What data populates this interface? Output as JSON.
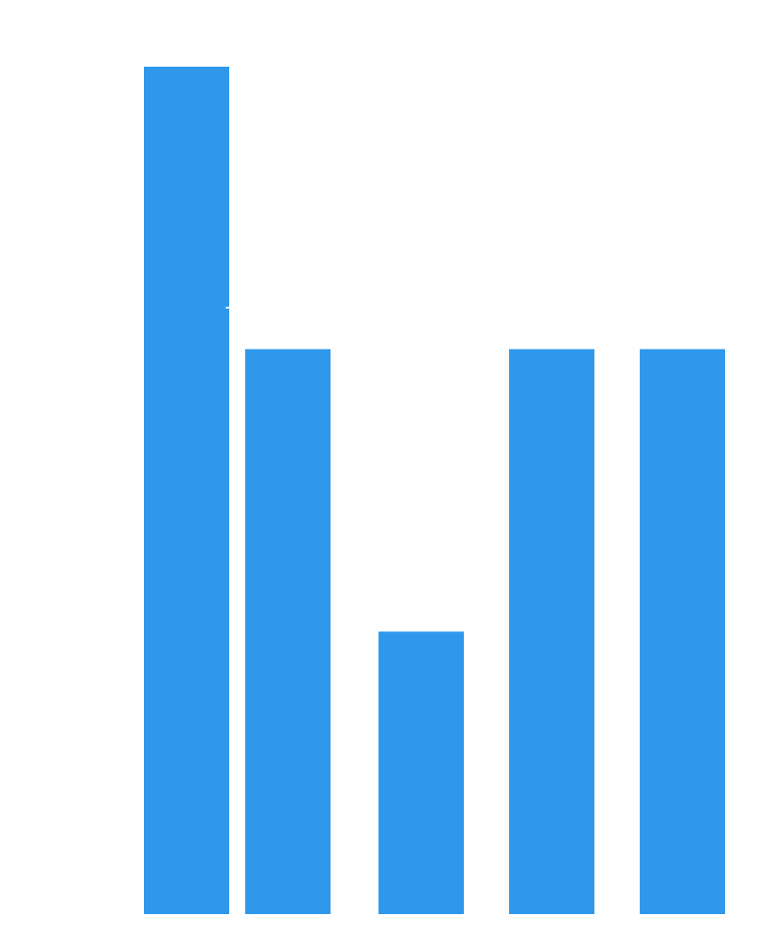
{
  "chart_data": {
    "type": "bar",
    "categories": [
      "",
      "",
      "",
      "",
      ""
    ],
    "values": [
      3,
      2,
      1,
      2,
      2
    ],
    "ylim": [
      0,
      3
    ],
    "grid": false,
    "legend": "none",
    "colors": {
      "bar": "#2f98eb",
      "background": "#ffffff"
    }
  }
}
